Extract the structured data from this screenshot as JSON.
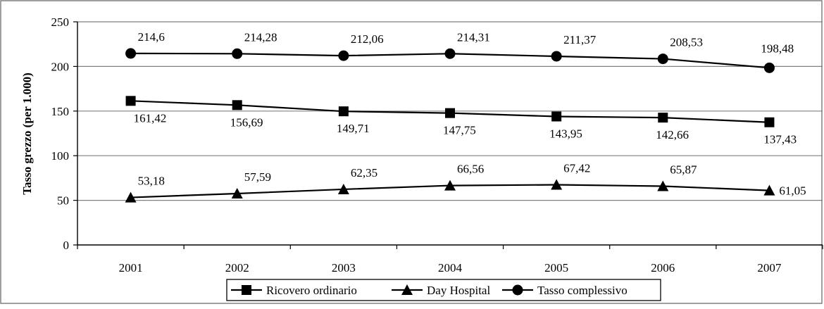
{
  "chart_data": {
    "type": "line",
    "title": "",
    "xlabel": "",
    "ylabel": "Tasso grezzo (per 1.000)",
    "ylim": [
      0,
      250
    ],
    "yticks": [
      "0",
      "50",
      "100",
      "150",
      "200",
      "250"
    ],
    "categories": [
      "2001",
      "2002",
      "2003",
      "2004",
      "2005",
      "2006",
      "2007"
    ],
    "grid": "horizontal",
    "legend_position": "bottom",
    "series": [
      {
        "name": "Ricovero ordinario",
        "marker": "square",
        "values": [
          161.42,
          156.69,
          149.71,
          147.75,
          143.95,
          142.66,
          137.43
        ],
        "labels": [
          "161,42",
          "156,69",
          "149,71",
          "147,75",
          "143,95",
          "142,66",
          "137,43"
        ]
      },
      {
        "name": "Day Hospital",
        "marker": "triangle",
        "values": [
          53.18,
          57.59,
          62.35,
          66.56,
          67.42,
          65.87,
          61.05
        ],
        "labels": [
          "53,18",
          "57,59",
          "62,35",
          "66,56",
          "67,42",
          "65,87",
          "61,05"
        ]
      },
      {
        "name": "Tasso complessivo",
        "marker": "circle",
        "values": [
          214.6,
          214.28,
          212.06,
          214.31,
          211.37,
          208.53,
          198.48
        ],
        "labels": [
          "214,6",
          "214,28",
          "212,06",
          "214,31",
          "211,37",
          "208,53",
          "198,48"
        ]
      }
    ],
    "colors": {
      "line": "#000000",
      "grid": "#808080",
      "axis": "#000000",
      "border": "#808080"
    }
  }
}
